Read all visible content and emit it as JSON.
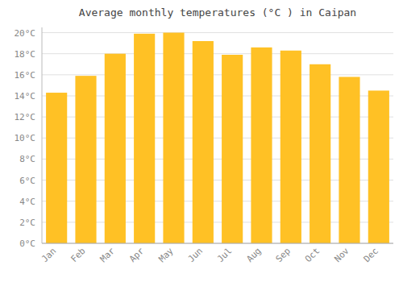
{
  "chart_data": {
    "type": "bar",
    "title": "Average monthly temperatures (°C ) in Caipan",
    "categories": [
      "Jan",
      "Feb",
      "Mar",
      "Apr",
      "May",
      "Jun",
      "Jul",
      "Aug",
      "Sep",
      "Oct",
      "Nov",
      "Dec"
    ],
    "values": [
      14.3,
      15.9,
      18.0,
      19.9,
      20.0,
      19.2,
      17.9,
      18.6,
      18.3,
      17.0,
      15.8,
      14.5
    ],
    "color": "#FFC125",
    "ylim": [
      0,
      20.5
    ],
    "yticks": [
      {
        "value": 0,
        "label": "0°C"
      },
      {
        "value": 2,
        "label": "2°C"
      },
      {
        "value": 4,
        "label": "4°C"
      },
      {
        "value": 6,
        "label": "6°C"
      },
      {
        "value": 8,
        "label": "8°C"
      },
      {
        "value": 10,
        "label": "10°C"
      },
      {
        "value": 12,
        "label": "12°C"
      },
      {
        "value": 14,
        "label": "14°C"
      },
      {
        "value": 16,
        "label": "16°C"
      },
      {
        "value": 18,
        "label": "18°C"
      },
      {
        "value": 20,
        "label": "20°C"
      }
    ],
    "grid": true
  }
}
